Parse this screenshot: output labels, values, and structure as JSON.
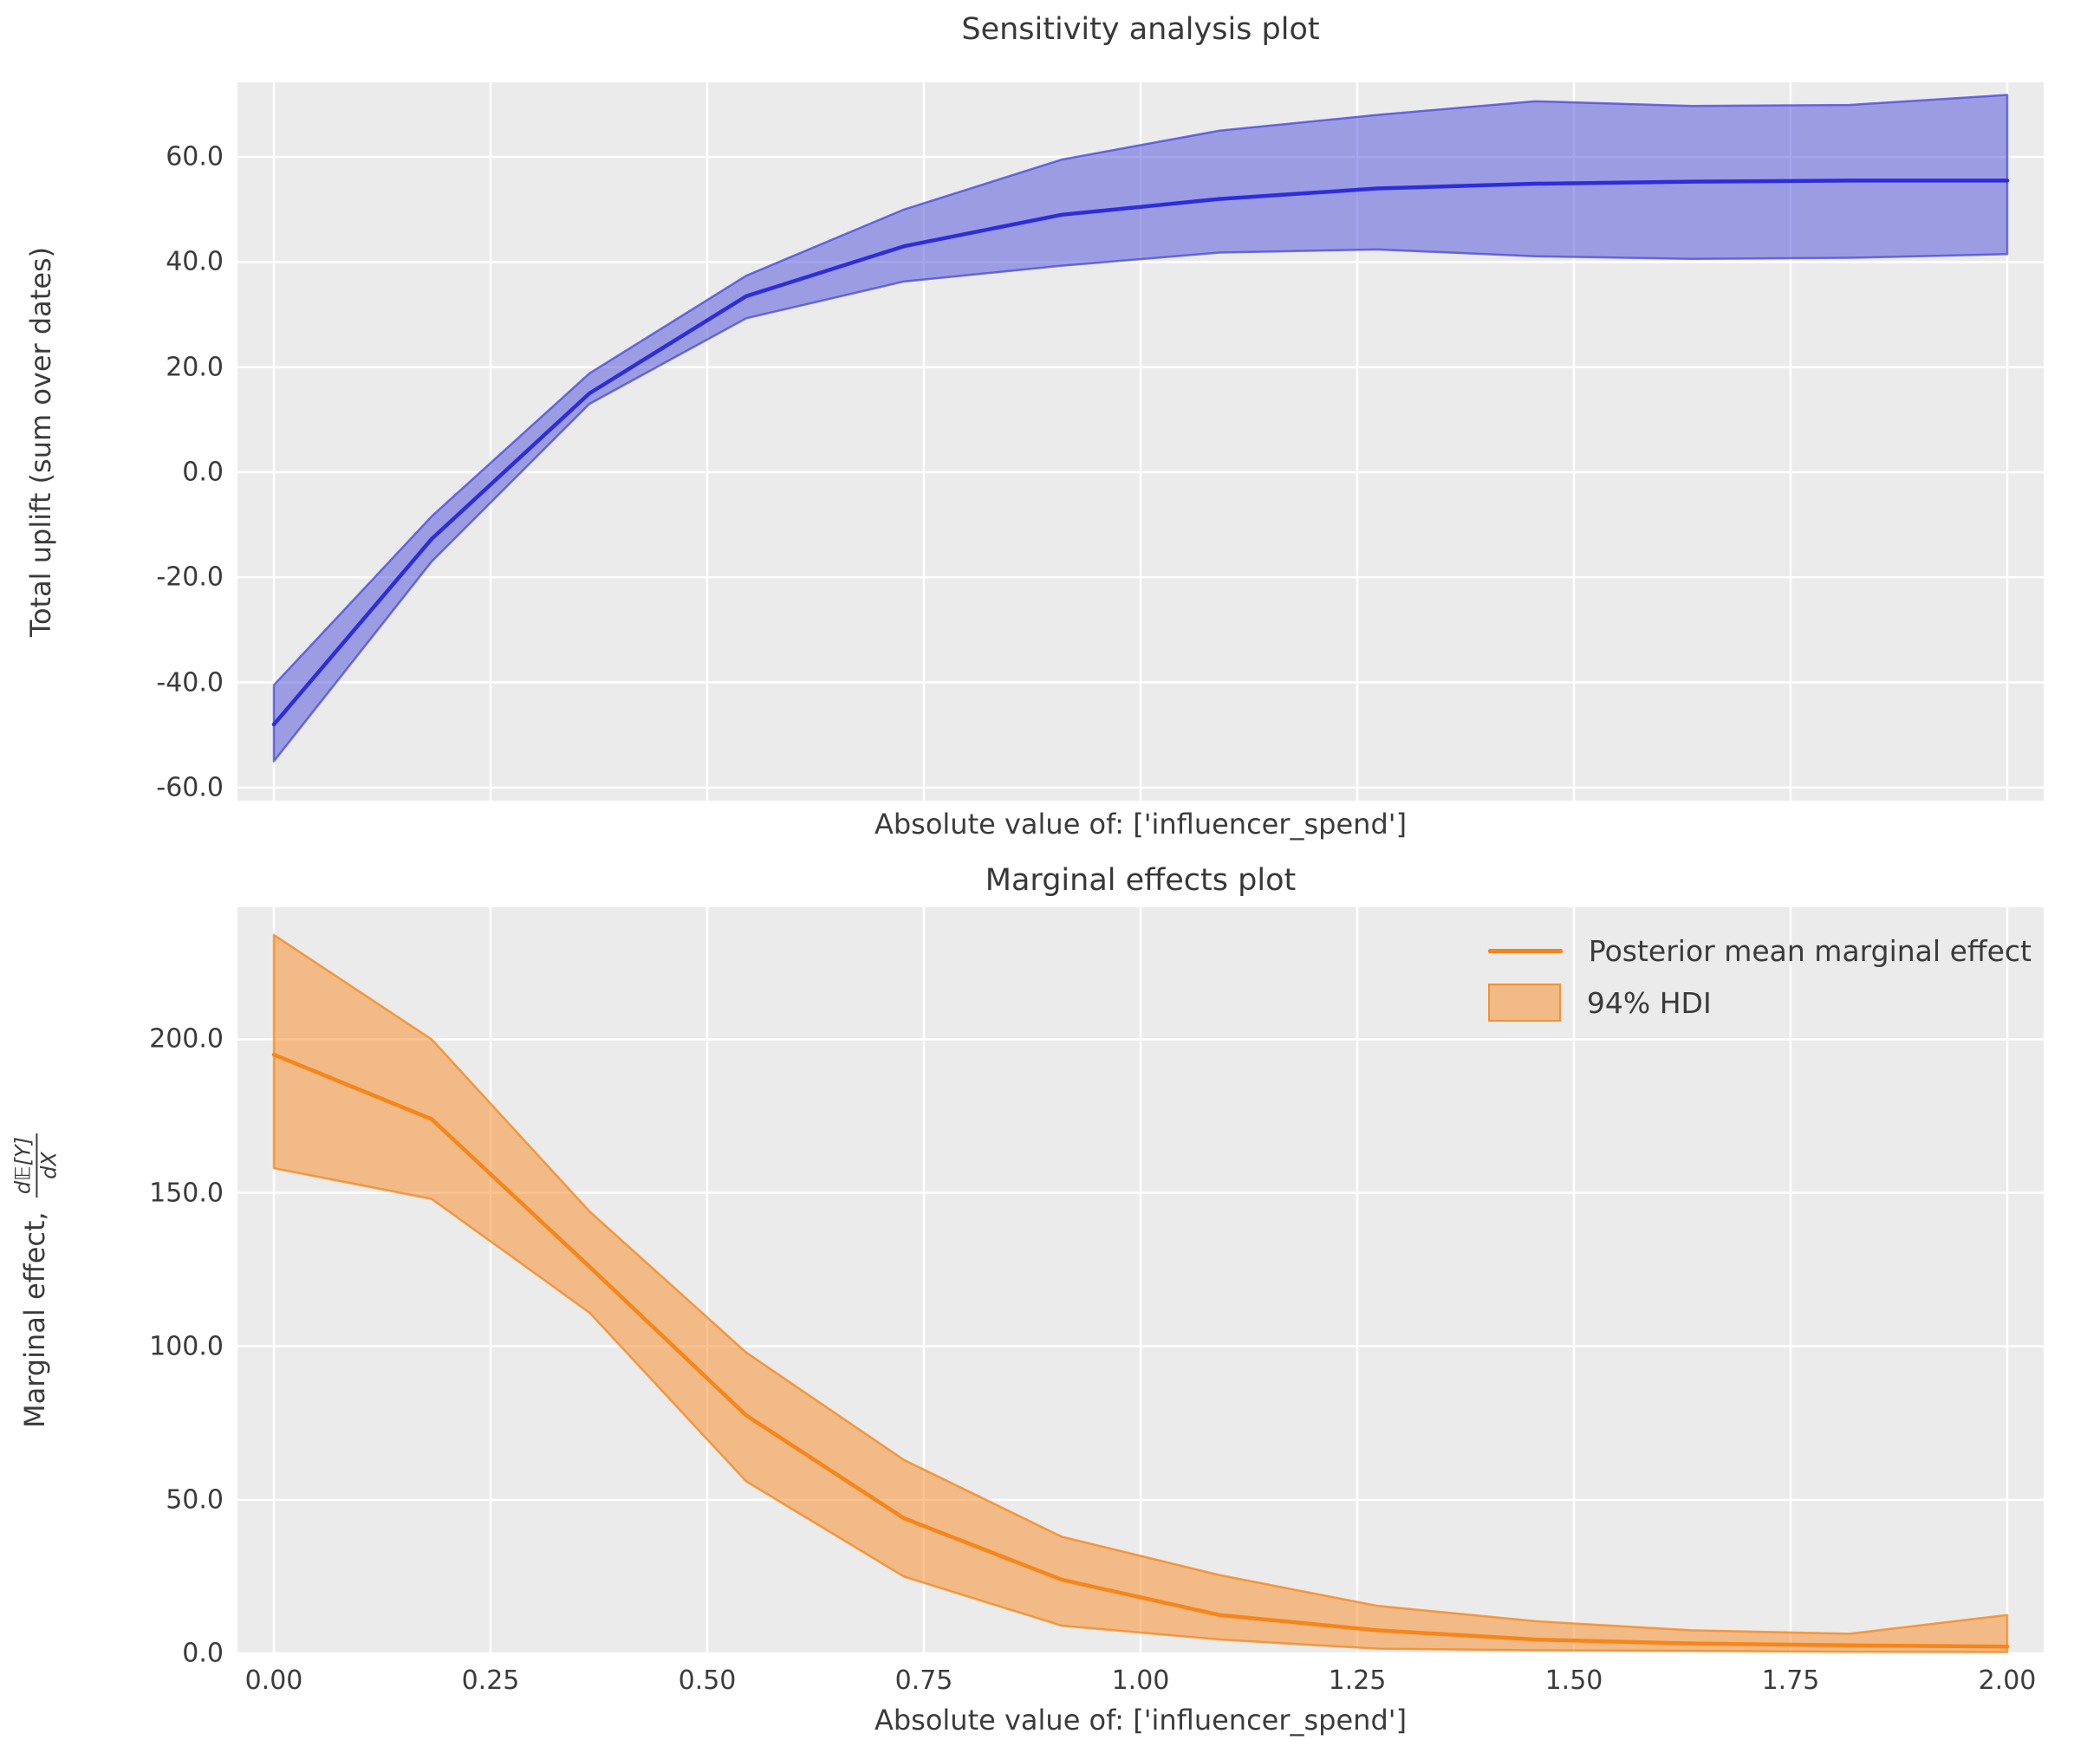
{
  "figure": {
    "background": "#ffffff",
    "axes_background": "#ebebeb",
    "grid_color": "#ffffff",
    "text_color": "#3b3b3b"
  },
  "chart_data": [
    {
      "type": "area",
      "title": "Sensitivity analysis plot",
      "xlabel": "Absolute value of: ['influencer_spend']",
      "ylabel": "Total uplift (sum over dates)",
      "grid": true,
      "legend": null,
      "x": [
        0.0,
        0.182,
        0.364,
        0.545,
        0.727,
        0.909,
        1.091,
        1.273,
        1.455,
        1.636,
        1.818,
        2.0
      ],
      "series": [
        {
          "name": "posterior_mean_total_uplift",
          "values": [
            -48,
            -12.7,
            15,
            33.5,
            43,
            49,
            52,
            54,
            54.9,
            55.3,
            55.5,
            55.5
          ]
        },
        {
          "name": "hdi_lower",
          "values": [
            -55,
            -17,
            13,
            29.3,
            36.3,
            39.3,
            41.8,
            42.4,
            41.1,
            40.6,
            40.8,
            41.5
          ]
        },
        {
          "name": "hdi_upper",
          "values": [
            -40.5,
            -8.4,
            18.8,
            37.4,
            50,
            59.5,
            65,
            68,
            70.6,
            69.7,
            69.9,
            71.8
          ]
        }
      ],
      "xlim": [
        -0.042,
        2.042
      ],
      "ylim": [
        -62.5,
        74.2
      ],
      "yticks": {
        "values": [
          60,
          40,
          20,
          0,
          -20,
          -40,
          -60
        ],
        "labels": [
          "60.0",
          "40.0",
          "20.0",
          "0.0",
          "-20.0",
          "-40.0",
          "-60.0"
        ]
      },
      "xticks": {
        "values": [
          0,
          0.25,
          0.5,
          0.75,
          1.0,
          1.25,
          1.5,
          1.75,
          2.0
        ],
        "labels": []
      },
      "line_color": "#2d2ddc",
      "band_fill": "rgba(70,70,218,0.48)",
      "band_edge": "rgba(70,70,218,0.75)"
    },
    {
      "type": "area",
      "title": "Marginal effects plot",
      "xlabel": "Absolute value of: ['influencer_spend']",
      "ylabel_prefix": "Marginal effect, ",
      "ylabel_frac_num": "d𝔼[Y]",
      "ylabel_frac_den": "dX",
      "grid": true,
      "legend": {
        "position": "upper right",
        "entries": [
          {
            "label": "Posterior mean marginal effect",
            "marker": "line"
          },
          {
            "label": "94% HDI",
            "marker": "patch"
          }
        ]
      },
      "x": [
        0.0,
        0.182,
        0.364,
        0.545,
        0.727,
        0.909,
        1.091,
        1.273,
        1.455,
        1.636,
        1.818,
        2.0
      ],
      "series": [
        {
          "name": "posterior_mean_marginal_effect",
          "values": [
            195,
            174,
            126,
            77.5,
            44,
            24,
            12.5,
            7.5,
            4.5,
            3.2,
            2.6,
            2.2
          ]
        },
        {
          "name": "hdi_lower",
          "values": [
            158,
            148,
            111,
            56,
            25,
            9,
            4.5,
            1.5,
            1.0,
            0.8,
            0.5,
            0.4
          ]
        },
        {
          "name": "hdi_upper",
          "values": [
            234,
            200,
            144,
            98,
            63,
            38,
            25.5,
            15.5,
            10.5,
            7.5,
            6.4,
            12.5
          ]
        }
      ],
      "xlim": [
        -0.042,
        2.042
      ],
      "ylim": [
        0,
        243
      ],
      "yticks": {
        "values": [
          200,
          150,
          100,
          50,
          0
        ],
        "labels": [
          "200.0",
          "150.0",
          "100.0",
          "50.0",
          "0.0"
        ]
      },
      "xticks": {
        "values": [
          0,
          0.25,
          0.5,
          0.75,
          1.0,
          1.25,
          1.5,
          1.75,
          2.0
        ],
        "labels": [
          "0.00",
          "0.25",
          "0.50",
          "0.75",
          "1.00",
          "1.25",
          "1.50",
          "1.75",
          "2.00"
        ]
      },
      "line_color": "#f7851a",
      "band_fill": "rgba(246,131,23,0.48)",
      "band_edge": "rgba(246,131,23,0.75)"
    }
  ]
}
